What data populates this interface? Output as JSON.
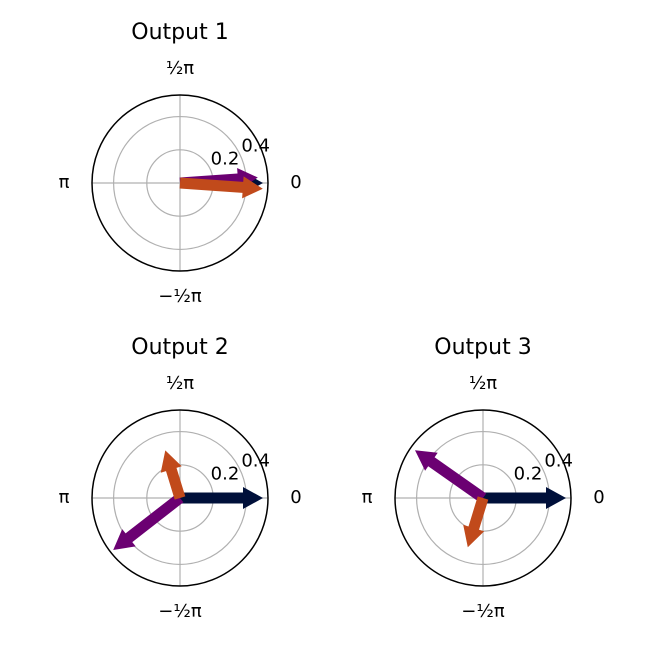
{
  "chart_data": [
    {
      "type": "polar",
      "title": "Output 1",
      "rlim": [
        0,
        0.53
      ],
      "rticks": [
        0.2,
        0.4
      ],
      "thetaticks": [
        {
          "value": 0,
          "label": "0"
        },
        {
          "value": 1.5708,
          "label": "½π"
        },
        {
          "value": 3.1416,
          "label": "π"
        },
        {
          "value": -1.5708,
          "label": "−½π"
        }
      ],
      "grid": true,
      "series": [
        {
          "color": "#00103a",
          "r": [
            0.5
          ],
          "theta": [
            0
          ]
        },
        {
          "color": "#6b0072",
          "r": [
            0.47
          ],
          "theta": [
            0.07
          ]
        },
        {
          "color": "#c14a1b",
          "r": [
            0.5
          ],
          "theta": [
            -0.07
          ]
        }
      ]
    },
    {
      "type": "polar",
      "title": "Output 2",
      "rlim": [
        0,
        0.53
      ],
      "rticks": [
        0.2,
        0.4
      ],
      "thetaticks": [
        {
          "value": 0,
          "label": "0"
        },
        {
          "value": 1.5708,
          "label": "½π"
        },
        {
          "value": 3.1416,
          "label": "π"
        },
        {
          "value": -1.5708,
          "label": "−½π"
        }
      ],
      "grid": true,
      "series": [
        {
          "color": "#00103a",
          "r": [
            0.5
          ],
          "theta": [
            0
          ]
        },
        {
          "color": "#6b0072",
          "r": [
            0.51
          ],
          "theta": [
            -2.48
          ]
        },
        {
          "color": "#c14a1b",
          "r": [
            0.3
          ],
          "theta": [
            1.87
          ]
        }
      ]
    },
    {
      "type": "polar",
      "title": "Output 3",
      "rlim": [
        0,
        0.53
      ],
      "rticks": [
        0.2,
        0.4
      ],
      "thetaticks": [
        {
          "value": 0,
          "label": "0"
        },
        {
          "value": 1.5708,
          "label": "½π"
        },
        {
          "value": 3.1416,
          "label": "π"
        },
        {
          "value": -1.5708,
          "label": "−½π"
        }
      ],
      "grid": true,
      "series": [
        {
          "color": "#00103a",
          "r": [
            0.5
          ],
          "theta": [
            0
          ]
        },
        {
          "color": "#6b0072",
          "r": [
            0.5
          ],
          "theta": [
            2.53
          ]
        },
        {
          "color": "#c14a1b",
          "r": [
            0.31
          ],
          "theta": [
            -1.87
          ]
        }
      ]
    }
  ]
}
